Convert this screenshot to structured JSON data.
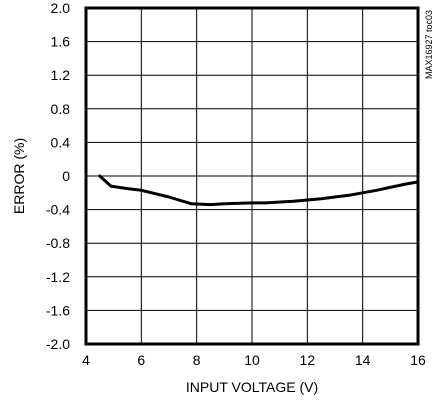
{
  "chart_data": {
    "type": "line",
    "title": "",
    "xlabel": "INPUT VOLTAGE (V)",
    "ylabel": "ERROR (%)",
    "side_note": "MAX16927 toc03",
    "xlim": [
      4,
      16
    ],
    "ylim": [
      -2.0,
      2.0
    ],
    "x_ticks": [
      4,
      6,
      8,
      10,
      12,
      14,
      16
    ],
    "x_tick_labels": [
      "4",
      "6",
      "8",
      "10",
      "12",
      "14",
      "16"
    ],
    "y_ticks": [
      2.0,
      1.6,
      1.2,
      0.8,
      0.4,
      0,
      -0.4,
      -0.8,
      -1.2,
      -1.6,
      -2.0
    ],
    "y_tick_labels": [
      "2.0",
      "1.6",
      "1.2",
      "0.8",
      "0.4",
      "0",
      "-0.4",
      "-0.8",
      "-1.2",
      "-1.6",
      "-2.0"
    ],
    "grid": true,
    "line_color": "#000000",
    "series": [
      {
        "x": [
          4.5,
          4.9,
          5.5,
          6.0,
          7.0,
          7.8,
          8.5,
          9.0,
          10.0,
          10.5,
          11.5,
          12.5,
          13.5,
          14.5,
          15.5,
          16.0
        ],
        "y": [
          0.0,
          -0.12,
          -0.15,
          -0.17,
          -0.25,
          -0.33,
          -0.34,
          -0.33,
          -0.32,
          -0.32,
          -0.3,
          -0.27,
          -0.23,
          -0.17,
          -0.1,
          -0.07
        ]
      }
    ]
  }
}
